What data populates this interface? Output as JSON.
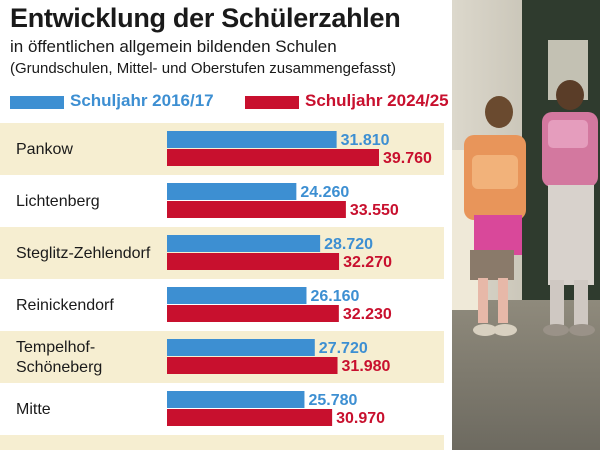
{
  "chart_data": {
    "type": "bar",
    "orientation": "horizontal",
    "title": "Entwicklung der Schülerzahlen",
    "subtitle": "in öffentlichen allgemein bildenden Schulen",
    "subtitle2": "(Grundschulen, Mittel- und Oberstufen zusammengefasst)",
    "categories": [
      [
        "Pankow"
      ],
      [
        "Lichtenberg"
      ],
      [
        "Steglitz-Zehlendorf"
      ],
      [
        "Reinickendorf"
      ],
      [
        "Tempelhof-",
        "Schöneberg"
      ],
      [
        "Mitte"
      ]
    ],
    "series": [
      {
        "name": "Schuljahr 2016/17",
        "color": "#3d8fd2",
        "values": [
          31810,
          24260,
          28720,
          26160,
          27720,
          25780
        ],
        "labels": [
          "31.810",
          "24.260",
          "28.720",
          "26.160",
          "27.720",
          "25.780"
        ]
      },
      {
        "name": "Schuljahr 2024/25",
        "color": "#c8102e",
        "values": [
          39760,
          33550,
          32270,
          32230,
          31980,
          30970
        ],
        "labels": [
          "39.760",
          "33.550",
          "32.270",
          "32.230",
          "31.980",
          "30.970"
        ]
      }
    ],
    "row_colors": [
      "#f6eed1",
      "#ffffff"
    ],
    "legend_position": "top-left",
    "grid": false
  },
  "photo": {
    "icon": "schoolchildren-photo"
  }
}
